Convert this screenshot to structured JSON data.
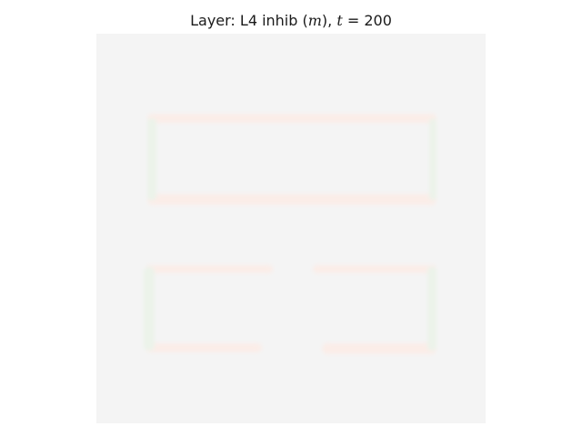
{
  "title": {
    "prefix": "Layer: L4 inhib (",
    "var": "m",
    "middle": "), ",
    "time_symbol": "t",
    "equals": " = ",
    "time_value": "200"
  },
  "image": {
    "description_type": "activity map",
    "background_color": "#f4f4f4",
    "stroke_color_horizontal": "#fbede8",
    "stroke_color_vertical": "#ecf3ea"
  }
}
